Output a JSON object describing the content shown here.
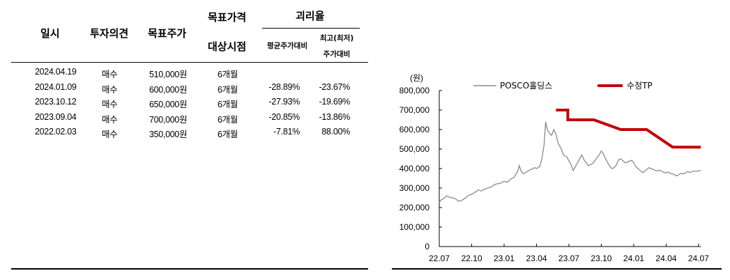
{
  "table": {
    "headers": {
      "date": "일시",
      "opinion": "투자의견",
      "target_price": "목표주가",
      "target_period_line1": "목표가격",
      "target_period_line2": "대상시점",
      "divergence": "괴리율",
      "avg_line1": "평균주가대비",
      "max_line1": "최고(최저)",
      "max_line2": "주가대비"
    },
    "rows": [
      {
        "date": "2024.04.19",
        "opinion": "매수",
        "price": "510,000원",
        "period": "6개월",
        "avg": "",
        "max": ""
      },
      {
        "date": "2024.01.09",
        "opinion": "매수",
        "price": "600,000원",
        "period": "6개월",
        "avg": "-28.89%",
        "max": "-23.67%"
      },
      {
        "date": "2023.10.12",
        "opinion": "매수",
        "price": "650,000원",
        "period": "6개월",
        "avg": "-27.93%",
        "max": "-19.69%"
      },
      {
        "date": "2023.09.04",
        "opinion": "매수",
        "price": "700,000원",
        "period": "6개월",
        "avg": "-20.85%",
        "max": "-13.86%"
      },
      {
        "date": "2022.02.03",
        "opinion": "매수",
        "price": "350,000원",
        "period": "6개월",
        "avg": "-7.81%",
        "max": "88.00%"
      }
    ]
  },
  "chart_data": {
    "type": "line",
    "unit_label": "(원)",
    "ylim": [
      0,
      800000
    ],
    "yticks": [
      "0",
      "100,000",
      "200,000",
      "300,000",
      "400,000",
      "500,000",
      "600,000",
      "700,000",
      "800,000"
    ],
    "xticks": [
      "22.07",
      "22.10",
      "23.01",
      "23.04",
      "23.07",
      "23.10",
      "24.01",
      "24.04",
      "24.07"
    ],
    "grid": false,
    "legend_position": "top",
    "series": [
      {
        "name": "POSCO홀딩스",
        "color": "#8a8a8a",
        "x": [
          0,
          0.2,
          0.45,
          0.7,
          0.95,
          1.25,
          1.5,
          1.8,
          2.1,
          2.4,
          2.7,
          3.0,
          3.3,
          3.6,
          3.9,
          4.2,
          4.5,
          4.8,
          5.1,
          5.4,
          5.7,
          6.0,
          6.3,
          6.6,
          6.9,
          7.1,
          7.25,
          7.4,
          7.5,
          7.6,
          7.8,
          8.0,
          8.2,
          8.4,
          8.6,
          8.8,
          9.0,
          9.3,
          9.5,
          9.7,
          9.85,
          10.0,
          10.2,
          10.4,
          10.6,
          10.8,
          11.0,
          11.3,
          11.5,
          11.8,
          12.0,
          12.2,
          12.4,
          12.6,
          12.8,
          13.0,
          13.2,
          13.4,
          13.6,
          13.8,
          14.0,
          14.2,
          14.4,
          14.6,
          14.8,
          15.0,
          15.2,
          15.4,
          15.6,
          15.8,
          16.0,
          16.2,
          16.4,
          16.6,
          16.8,
          17.0,
          17.2,
          17.4,
          17.6,
          17.8,
          18.0,
          18.2,
          18.4,
          18.6,
          18.8,
          19.0,
          19.2,
          19.4,
          19.6,
          19.8,
          20.0,
          20.2,
          20.4,
          20.6,
          20.8,
          21.0,
          21.2,
          21.4,
          21.6,
          21.8,
          22.0,
          22.2,
          22.4,
          22.6,
          22.8,
          23.0,
          23.2,
          23.4,
          23.6,
          23.8,
          24.0,
          24.2
        ],
        "y": [
          225000,
          240000,
          248000,
          260000,
          252000,
          250000,
          245000,
          232000,
          238000,
          248000,
          262000,
          268000,
          278000,
          290000,
          285000,
          295000,
          300000,
          305000,
          318000,
          322000,
          325000,
          335000,
          330000,
          345000,
          355000,
          370000,
          385000,
          415000,
          400000,
          385000,
          372000,
          380000,
          388000,
          392000,
          398000,
          405000,
          400000,
          410000,
          450000,
          520000,
          640000,
          600000,
          580000,
          570000,
          600000,
          575000,
          530000,
          500000,
          470000,
          460000,
          440000,
          420000,
          390000,
          410000,
          430000,
          450000,
          470000,
          445000,
          430000,
          415000,
          420000,
          425000,
          440000,
          455000,
          470000,
          490000,
          475000,
          450000,
          430000,
          410000,
          400000,
          405000,
          420000,
          445000,
          450000,
          440000,
          430000,
          432000,
          438000,
          442000,
          430000,
          410000,
          400000,
          390000,
          380000,
          385000,
          395000,
          405000,
          400000,
          395000,
          390000,
          388000,
          392000,
          385000,
          380000,
          378000,
          382000,
          375000,
          372000,
          368000,
          362000,
          370000,
          375000,
          372000,
          378000,
          385000,
          380000,
          385000,
          387000,
          386000,
          388000,
          390000
        ]
      },
      {
        "name": "수정TP",
        "color": "#c00000",
        "x": [
          10.8,
          11.9,
          11.9,
          14.3,
          14.3,
          16.8,
          16.8,
          19.2,
          19.2,
          21.6,
          21.6,
          24.2
        ],
        "y": [
          700000,
          700000,
          650000,
          650000,
          650000,
          600000,
          600000,
          600000,
          600000,
          510000,
          510000,
          510000
        ]
      }
    ]
  }
}
